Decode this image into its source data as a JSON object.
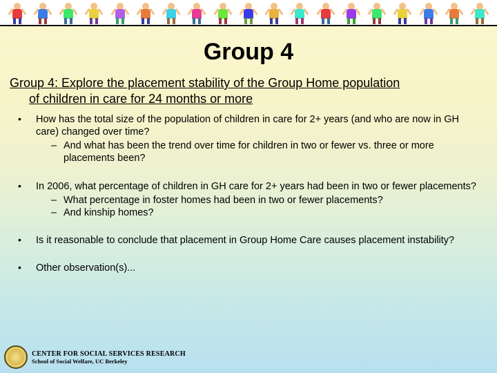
{
  "banner": {
    "kid_count": 19,
    "shirt_colors": [
      "#e83b3b",
      "#3b7de8",
      "#3be86b",
      "#e8d13b",
      "#b25fe8",
      "#e87b3b",
      "#3bd1e8",
      "#e83b93",
      "#6be83b",
      "#3b3be8",
      "#e8b23b",
      "#3be8c9",
      "#e83b3b",
      "#9b3be8",
      "#3be86b",
      "#e8d13b",
      "#3b7de8",
      "#e87b3b",
      "#3be8c9"
    ],
    "pants_colors": [
      "#3b3b9b",
      "#9b3b3b",
      "#3b6b9b",
      "#6b3b9b",
      "#3b9b6b",
      "#3b3b9b",
      "#9b6b3b",
      "#3b6b9b",
      "#9b3b3b",
      "#6b9b3b",
      "#3b3b9b",
      "#9b3b6b",
      "#3b6b9b",
      "#3b9b3b",
      "#9b3b3b",
      "#3b3b9b",
      "#6b3b9b",
      "#3b9b6b",
      "#9b6b3b"
    ]
  },
  "title": "Group 4",
  "subtitle_line1": "Group 4: Explore the placement stability of the Group Home population",
  "subtitle_line2": "of children in care for 24 months or more",
  "bullets": [
    {
      "text": "How has the total size of the population of children in care for 2+ years (and who are now in GH care) changed over time?",
      "sub": [
        "And what has been the trend over time for children in two or fewer vs. three or more placements been?"
      ]
    },
    {
      "text": "In 2006, what percentage of children in GH care for 2+ years had been in two or fewer placements?",
      "sub": [
        "What percentage in foster homes had been in two or fewer placements?",
        "And kinship homes?"
      ]
    },
    {
      "text": "Is it reasonable to conclude that placement in Group Home Care causes placement instability?",
      "sub": []
    },
    {
      "text": "Other observation(s)...",
      "sub": []
    }
  ],
  "footer": {
    "line1": "CENTER FOR SOCIAL SERVICES RESEARCH",
    "line2": "School of Social Welfare, UC Berkeley"
  }
}
